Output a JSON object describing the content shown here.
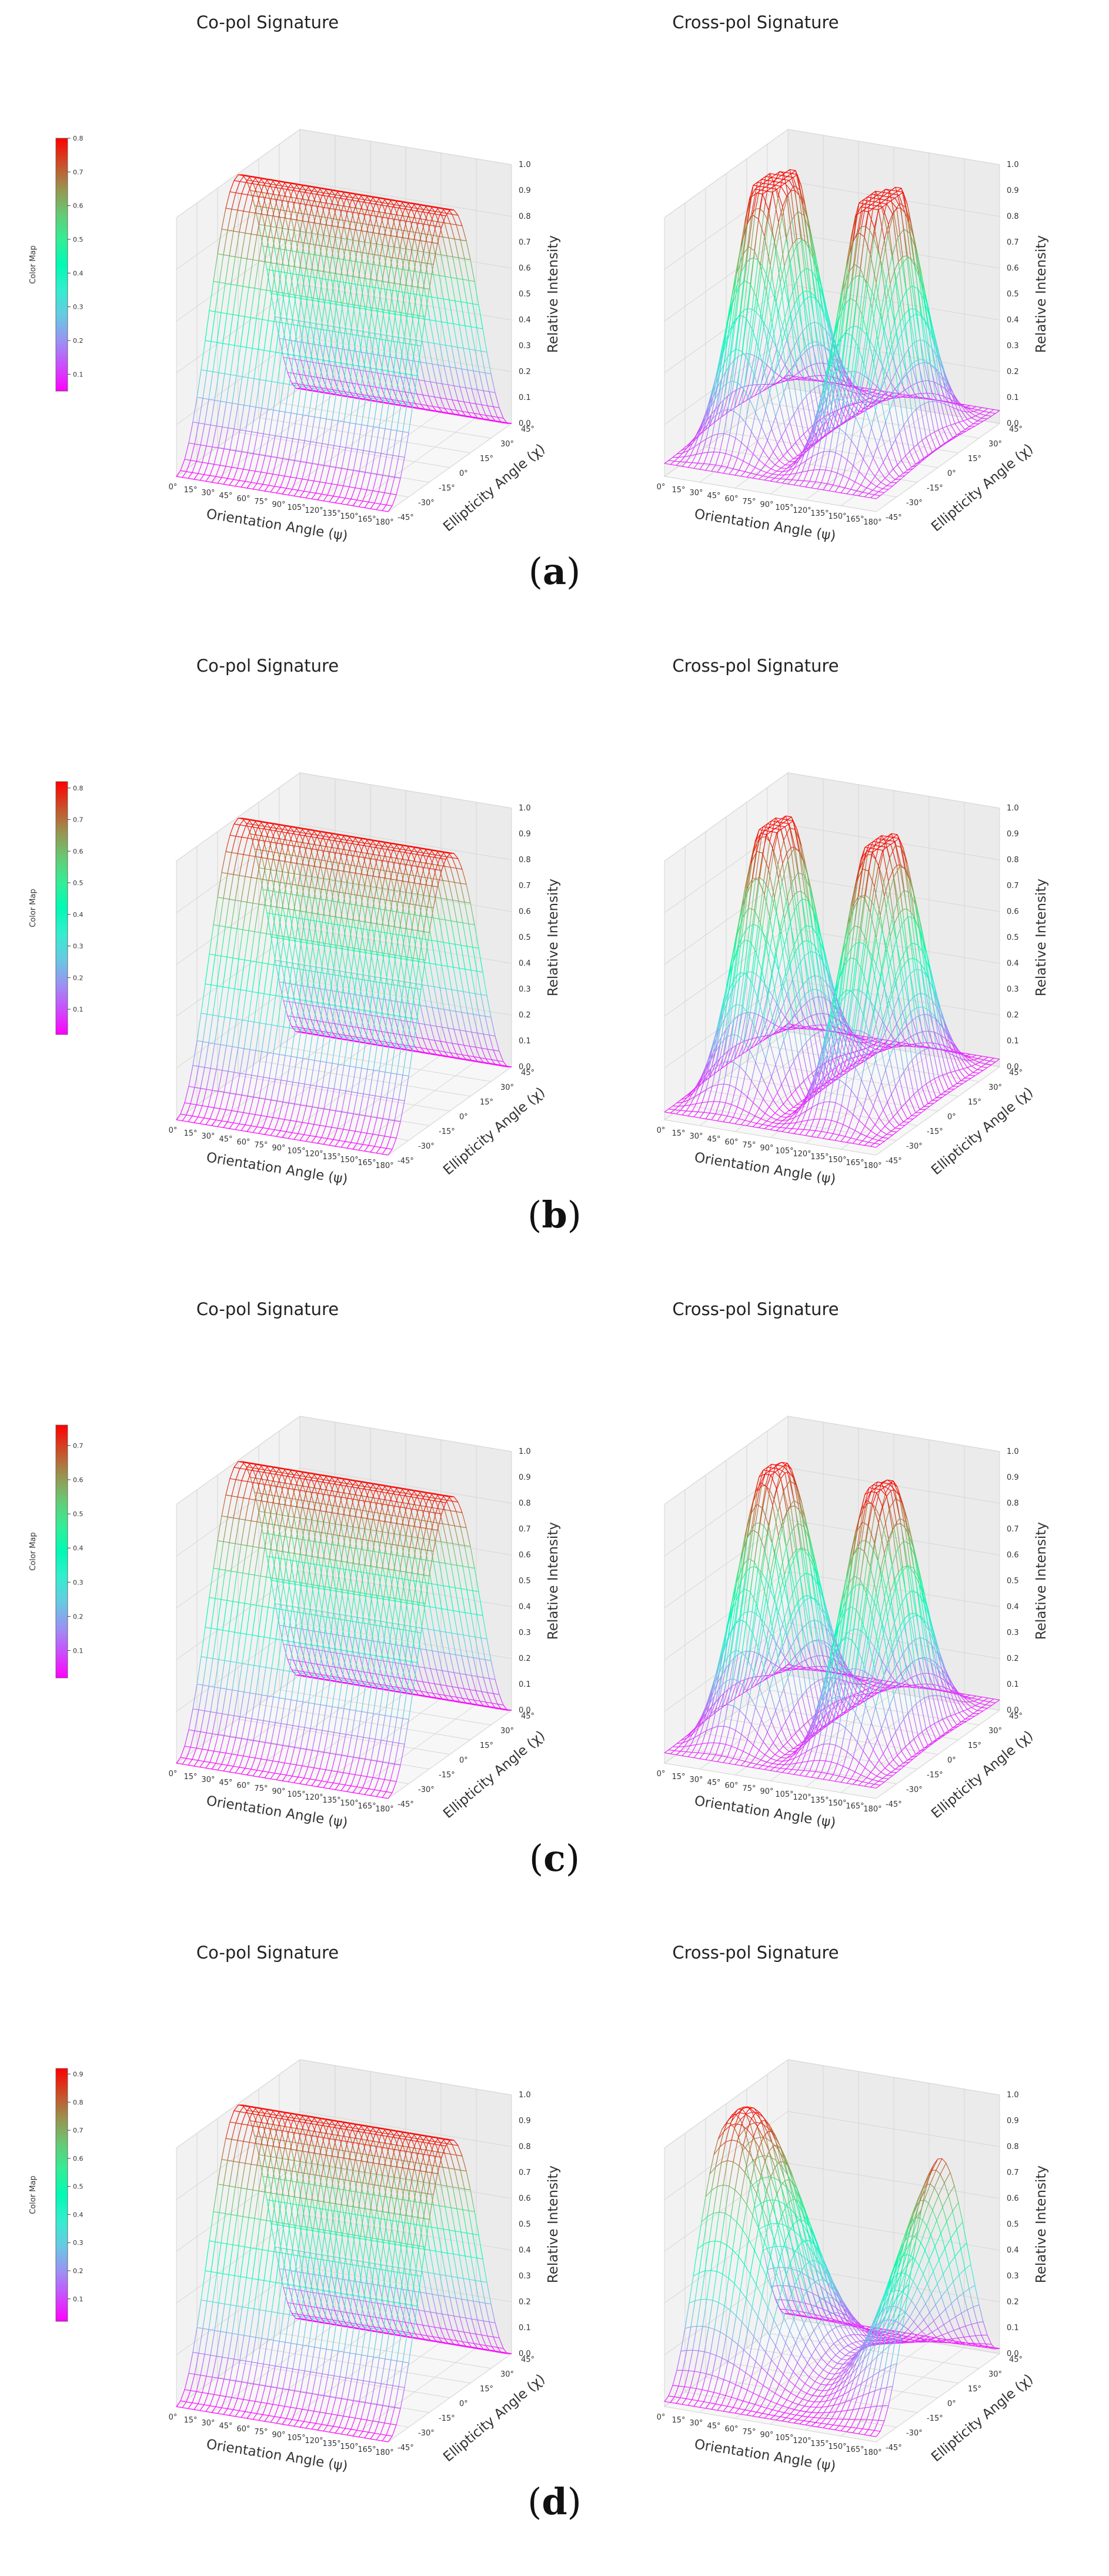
{
  "figure": {
    "panels": [
      {
        "id": "a",
        "label_left": "(",
        "label_letter": "a",
        "label_right": ")"
      },
      {
        "id": "b",
        "label_left": "(",
        "label_letter": "b",
        "label_right": ")"
      },
      {
        "id": "c",
        "label_left": "(",
        "label_letter": "c",
        "label_right": ")"
      },
      {
        "id": "d",
        "label_left": "(",
        "label_letter": "d",
        "label_right": ")"
      }
    ]
  },
  "chart_data": [
    {
      "type": "surface3d",
      "panel": "a",
      "plot": "co-pol",
      "title": "Co-pol Signature",
      "xlabel": "Orientation Angle (ψ)",
      "ylabel": "Ellipticity Angle (χ)",
      "zlabel": "Relative Intensity",
      "x_ticks": [
        "0°",
        "15°",
        "30°",
        "45°",
        "60°",
        "75°",
        "90°",
        "105°",
        "120°",
        "135°",
        "150°",
        "165°",
        "180°"
      ],
      "y_ticks": [
        "-45°",
        "-30°",
        "-15°",
        "0°",
        "15°",
        "30°",
        "45°"
      ],
      "z_ticks": [
        "0.0",
        "0.1",
        "0.2",
        "0.3",
        "0.4",
        "0.5",
        "0.6",
        "0.7",
        "0.8",
        "0.9",
        "1.0"
      ],
      "zlim": [
        0,
        1
      ],
      "colorbar": {
        "label": "Color Map",
        "ticks": [
          "0.1",
          "0.2",
          "0.3",
          "0.4",
          "0.5",
          "0.6",
          "0.7",
          "0.8"
        ],
        "range": [
          0.05,
          0.8
        ]
      },
      "colors": {
        "low": "#8000ff",
        "high": "#ff0000"
      }
    },
    {
      "type": "surface3d",
      "panel": "a",
      "plot": "cross-pol",
      "title": "Cross-pol Signature",
      "xlabel": "Orientation Angle (ψ)",
      "ylabel": "Ellipticity Angle (χ)",
      "zlabel": "Relative Intensity",
      "x_ticks": [
        "0°",
        "15°",
        "30°",
        "45°",
        "60°",
        "75°",
        "90°",
        "105°",
        "120°",
        "135°",
        "150°",
        "165°",
        "180°"
      ],
      "y_ticks": [
        "-45°",
        "-30°",
        "-15°",
        "0°",
        "15°",
        "30°",
        "45°"
      ],
      "z_ticks": [
        "0.0",
        "0.1",
        "0.2",
        "0.3",
        "0.4",
        "0.5",
        "0.6",
        "0.7",
        "0.8",
        "0.9",
        "1.0"
      ],
      "zlim": [
        0,
        1
      ]
    },
    {
      "type": "surface3d",
      "panel": "b",
      "plot": "co-pol",
      "title": "Co-pol Signature",
      "xlabel": "Orientation Angle (ψ)",
      "ylabel": "Ellipticity Angle (χ)",
      "zlabel": "Relative Intensity",
      "x_ticks": [
        "0°",
        "15°",
        "30°",
        "45°",
        "60°",
        "75°",
        "90°",
        "105°",
        "120°",
        "135°",
        "150°",
        "165°",
        "180°"
      ],
      "y_ticks": [
        "-45°",
        "-30°",
        "-15°",
        "0°",
        "15°",
        "30°",
        "45°"
      ],
      "z_ticks": [
        "0.0",
        "0.1",
        "0.2",
        "0.3",
        "0.4",
        "0.5",
        "0.6",
        "0.7",
        "0.8",
        "0.9",
        "1.0"
      ],
      "zlim": [
        0,
        1
      ],
      "colorbar": {
        "label": "Color Map",
        "ticks": [
          "0.1",
          "0.2",
          "0.3",
          "0.4",
          "0.5",
          "0.6",
          "0.7",
          "0.8"
        ],
        "range": [
          0.02,
          0.82
        ]
      }
    },
    {
      "type": "surface3d",
      "panel": "b",
      "plot": "cross-pol",
      "title": "Cross-pol Signature",
      "xlabel": "Orientation Angle (ψ)",
      "ylabel": "Ellipticity Angle (χ)",
      "zlabel": "Relative Intensity",
      "x_ticks": [
        "0°",
        "15°",
        "30°",
        "45°",
        "60°",
        "75°",
        "90°",
        "105°",
        "120°",
        "135°",
        "150°",
        "165°",
        "180°"
      ],
      "y_ticks": [
        "-45°",
        "-30°",
        "-15°",
        "0°",
        "15°",
        "30°",
        "45°"
      ],
      "z_ticks": [
        "0.0",
        "0.1",
        "0.2",
        "0.3",
        "0.4",
        "0.5",
        "0.6",
        "0.7",
        "0.8",
        "0.9",
        "1.0"
      ],
      "zlim": [
        0,
        1
      ]
    },
    {
      "type": "surface3d",
      "panel": "c",
      "plot": "co-pol",
      "title": "Co-pol Signature",
      "xlabel": "Orientation Angle (ψ)",
      "ylabel": "Ellipticity Angle (χ)",
      "zlabel": "Relative Intensity",
      "x_ticks": [
        "0°",
        "15°",
        "30°",
        "45°",
        "60°",
        "75°",
        "90°",
        "105°",
        "120°",
        "135°",
        "150°",
        "165°",
        "180°"
      ],
      "y_ticks": [
        "-45°",
        "-30°",
        "-15°",
        "0°",
        "15°",
        "30°",
        "45°"
      ],
      "z_ticks": [
        "0.0",
        "0.1",
        "0.2",
        "0.3",
        "0.4",
        "0.5",
        "0.6",
        "0.7",
        "0.8",
        "0.9",
        "1.0"
      ],
      "zlim": [
        0,
        1
      ],
      "colorbar": {
        "label": "Color Map",
        "ticks": [
          "0.1",
          "0.2",
          "0.3",
          "0.4",
          "0.5",
          "0.6",
          "0.7"
        ],
        "range": [
          0.02,
          0.76
        ]
      }
    },
    {
      "type": "surface3d",
      "panel": "c",
      "plot": "cross-pol",
      "title": "Cross-pol Signature",
      "xlabel": "Orientation Angle (ψ)",
      "ylabel": "Ellipticity Angle (χ)",
      "zlabel": "Relative Intensity",
      "x_ticks": [
        "0°",
        "15°",
        "30°",
        "45°",
        "60°",
        "75°",
        "90°",
        "105°",
        "120°",
        "135°",
        "150°",
        "165°",
        "180°"
      ],
      "y_ticks": [
        "-45°",
        "-30°",
        "-15°",
        "0°",
        "15°",
        "30°",
        "45°"
      ],
      "z_ticks": [
        "0.0",
        "0.1",
        "0.2",
        "0.3",
        "0.4",
        "0.5",
        "0.6",
        "0.7",
        "0.8",
        "0.9",
        "1.0"
      ],
      "zlim": [
        0,
        1
      ]
    },
    {
      "type": "surface3d",
      "panel": "d",
      "plot": "co-pol",
      "title": "Co-pol Signature",
      "xlabel": "Orientation Angle (ψ)",
      "ylabel": "Ellipticity Angle (χ)",
      "zlabel": "Relative Intensity",
      "x_ticks": [
        "0°",
        "15°",
        "30°",
        "45°",
        "60°",
        "75°",
        "90°",
        "105°",
        "120°",
        "135°",
        "150°",
        "165°",
        "180°"
      ],
      "y_ticks": [
        "-45°",
        "-30°",
        "-15°",
        "0°",
        "15°",
        "30°",
        "45°"
      ],
      "z_ticks": [
        "0.0",
        "0.1",
        "0.2",
        "0.3",
        "0.4",
        "0.5",
        "0.6",
        "0.7",
        "0.8",
        "0.9",
        "1.0"
      ],
      "zlim": [
        0,
        1
      ],
      "colorbar": {
        "label": "Color Map",
        "ticks": [
          "0.1",
          "0.2",
          "0.3",
          "0.4",
          "0.5",
          "0.6",
          "0.7",
          "0.8",
          "0.9"
        ],
        "range": [
          0.02,
          0.92
        ]
      }
    },
    {
      "type": "surface3d",
      "panel": "d",
      "plot": "cross-pol",
      "title": "Cross-pol Signature",
      "xlabel": "Orientation Angle (ψ)",
      "ylabel": "Ellipticity Angle (χ)",
      "zlabel": "Relative Intensity",
      "x_ticks": [
        "0°",
        "15°",
        "30°",
        "45°",
        "60°",
        "75°",
        "90°",
        "105°",
        "120°",
        "135°",
        "150°",
        "165°",
        "180°"
      ],
      "y_ticks": [
        "-45°",
        "-30°",
        "-15°",
        "0°",
        "15°",
        "30°",
        "45°"
      ],
      "z_ticks": [
        "0.0",
        "0.1",
        "0.2",
        "0.3",
        "0.4",
        "0.5",
        "0.6",
        "0.7",
        "0.8",
        "0.9",
        "1.0"
      ],
      "zlim": [
        0,
        1
      ]
    }
  ]
}
